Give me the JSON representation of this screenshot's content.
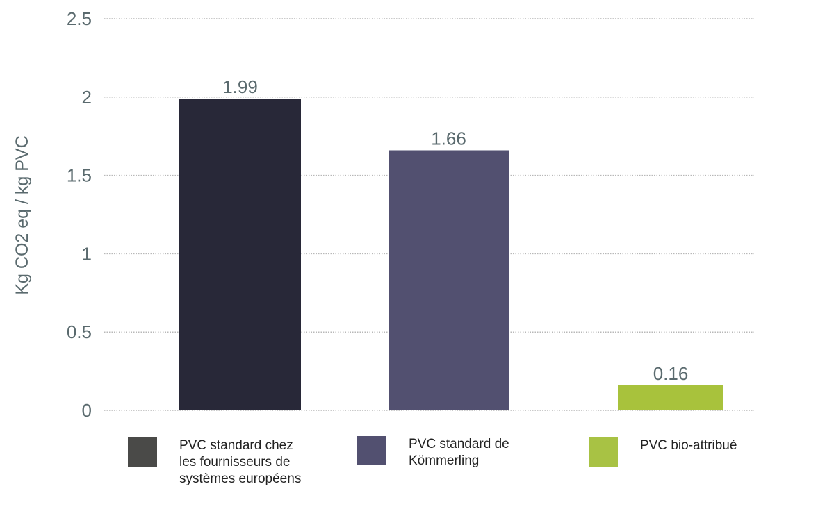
{
  "chart_data": {
    "type": "bar",
    "categories": [
      "PVC standard chez\nles fournisseurs de\nsystèmes européens",
      "PVC standard de\nKömmerling",
      "PVC bio-attribué"
    ],
    "values": [
      1.99,
      1.66,
      0.16
    ],
    "data_labels": [
      "1.99",
      "1.66",
      "0.16"
    ],
    "title": "",
    "xlabel": "",
    "ylabel": "Kg CO2 eq / kg PVC",
    "ylim": [
      0,
      2.5
    ],
    "yticks": [
      0,
      0.5,
      1,
      1.5,
      2,
      2.5
    ],
    "ytick_labels": [
      "0",
      "0.5",
      "1",
      "1.5",
      "2",
      "2.5"
    ],
    "grid": "horizontal dotted",
    "legend_position": "bottom",
    "bar_colors": [
      "#282838",
      "#525070",
      "#a8c23c"
    ],
    "legend_colors": [
      "#4a4a48",
      "#525070",
      "#a8c244"
    ],
    "text_color": "#5a6a6e"
  }
}
